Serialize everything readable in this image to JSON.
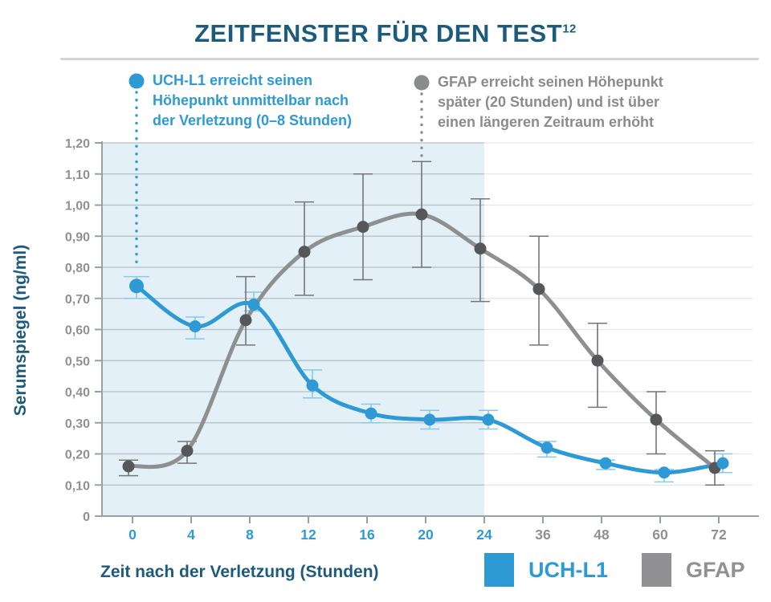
{
  "header": {
    "title": "ZEITFENSTER FÜR DEN TEST",
    "title_superscript": "12"
  },
  "axes": {
    "xlabel": "Zeit nach der Verletzung (Stunden)",
    "ylabel": "Serumspiegel (ng/ml)"
  },
  "annotations": [
    {
      "series": "UCH-L1",
      "text": "UCH-L1 erreicht seinen\nHöhepunkt unmittelbar nach\nder Verletzung (0–8 Stunden)",
      "color": "#2e9ad5",
      "points_to_hour": 0
    },
    {
      "series": "GFAP",
      "text": "GFAP erreicht seinen Höhepunkt\nspäter (20 Stunden) und ist über\neinen längeren Zeitraum erhöht",
      "color": "#8a8b8d",
      "points_to_hour": 20
    }
  ],
  "legend": [
    {
      "label": "UCH-L1",
      "color": "#2e9ad5"
    },
    {
      "label": "GFAP",
      "color": "#919193"
    }
  ],
  "colors": {
    "dark_blue": "#1d5b7d",
    "blue": "#2e9ad5",
    "blue_error": "#85c9ec",
    "gray_curve": "#8e8f91",
    "gray_point": "#56575a",
    "gray_error": "#747578",
    "axis": "#9aa0a4",
    "grid_inside": "#b3bfc6",
    "grid_outside": "#e4e6e8",
    "highlight": "#e4f0f8",
    "divider": "#d5d5d5"
  },
  "chart_data": {
    "type": "line",
    "title": "ZEITFENSTER FÜR DEN TEST",
    "xlabel": "Zeit nach der Verletzung (Stunden)",
    "ylabel": "Serumspiegel (ng/ml)",
    "x_hours": [
      0,
      4,
      8,
      12,
      16,
      20,
      24,
      36,
      48,
      60,
      72
    ],
    "x_tick_labels": [
      "0",
      "4",
      "8",
      "12",
      "16",
      "20",
      "24",
      "36",
      "48",
      "60",
      "72"
    ],
    "y_ticks": [
      0,
      0.1,
      0.2,
      0.3,
      0.4,
      0.5,
      0.6,
      0.7,
      0.8,
      0.9,
      1.0,
      1.1,
      1.2
    ],
    "y_tick_labels": [
      "0",
      "0,10",
      "0,20",
      "0,30",
      "0,40",
      "0,50",
      "0,60",
      "0,70",
      "0,80",
      "0,90",
      "1,00",
      "1,10",
      "1,20"
    ],
    "ylim": [
      0,
      1.2
    ],
    "grid": true,
    "legend_position": "bottom",
    "highlighted_window_hours": [
      0,
      24
    ],
    "series": [
      {
        "name": "UCH-L1",
        "color": "#2e9ad5",
        "error_color": "#85c9ec",
        "values": [
          0.74,
          0.61,
          0.68,
          0.42,
          0.33,
          0.31,
          0.31,
          0.22,
          0.17,
          0.14,
          0.17
        ],
        "err_low": [
          0.7,
          0.57,
          0.66,
          0.38,
          0.3,
          0.28,
          0.28,
          0.19,
          0.15,
          0.11,
          0.14
        ],
        "err_high": [
          0.77,
          0.64,
          0.72,
          0.47,
          0.36,
          0.34,
          0.34,
          0.24,
          0.18,
          0.15,
          0.2
        ]
      },
      {
        "name": "GFAP",
        "color": "#8e8f91",
        "point_color": "#56575a",
        "error_color": "#747578",
        "values": [
          0.16,
          0.21,
          0.63,
          0.85,
          0.93,
          0.97,
          0.86,
          0.73,
          0.5,
          0.31,
          0.155
        ],
        "err_low": [
          0.13,
          0.17,
          0.55,
          0.71,
          0.76,
          0.8,
          0.69,
          0.55,
          0.35,
          0.2,
          0.1
        ],
        "err_high": [
          0.18,
          0.24,
          0.77,
          1.01,
          1.1,
          1.14,
          1.02,
          0.9,
          0.62,
          0.4,
          0.21
        ]
      }
    ]
  }
}
